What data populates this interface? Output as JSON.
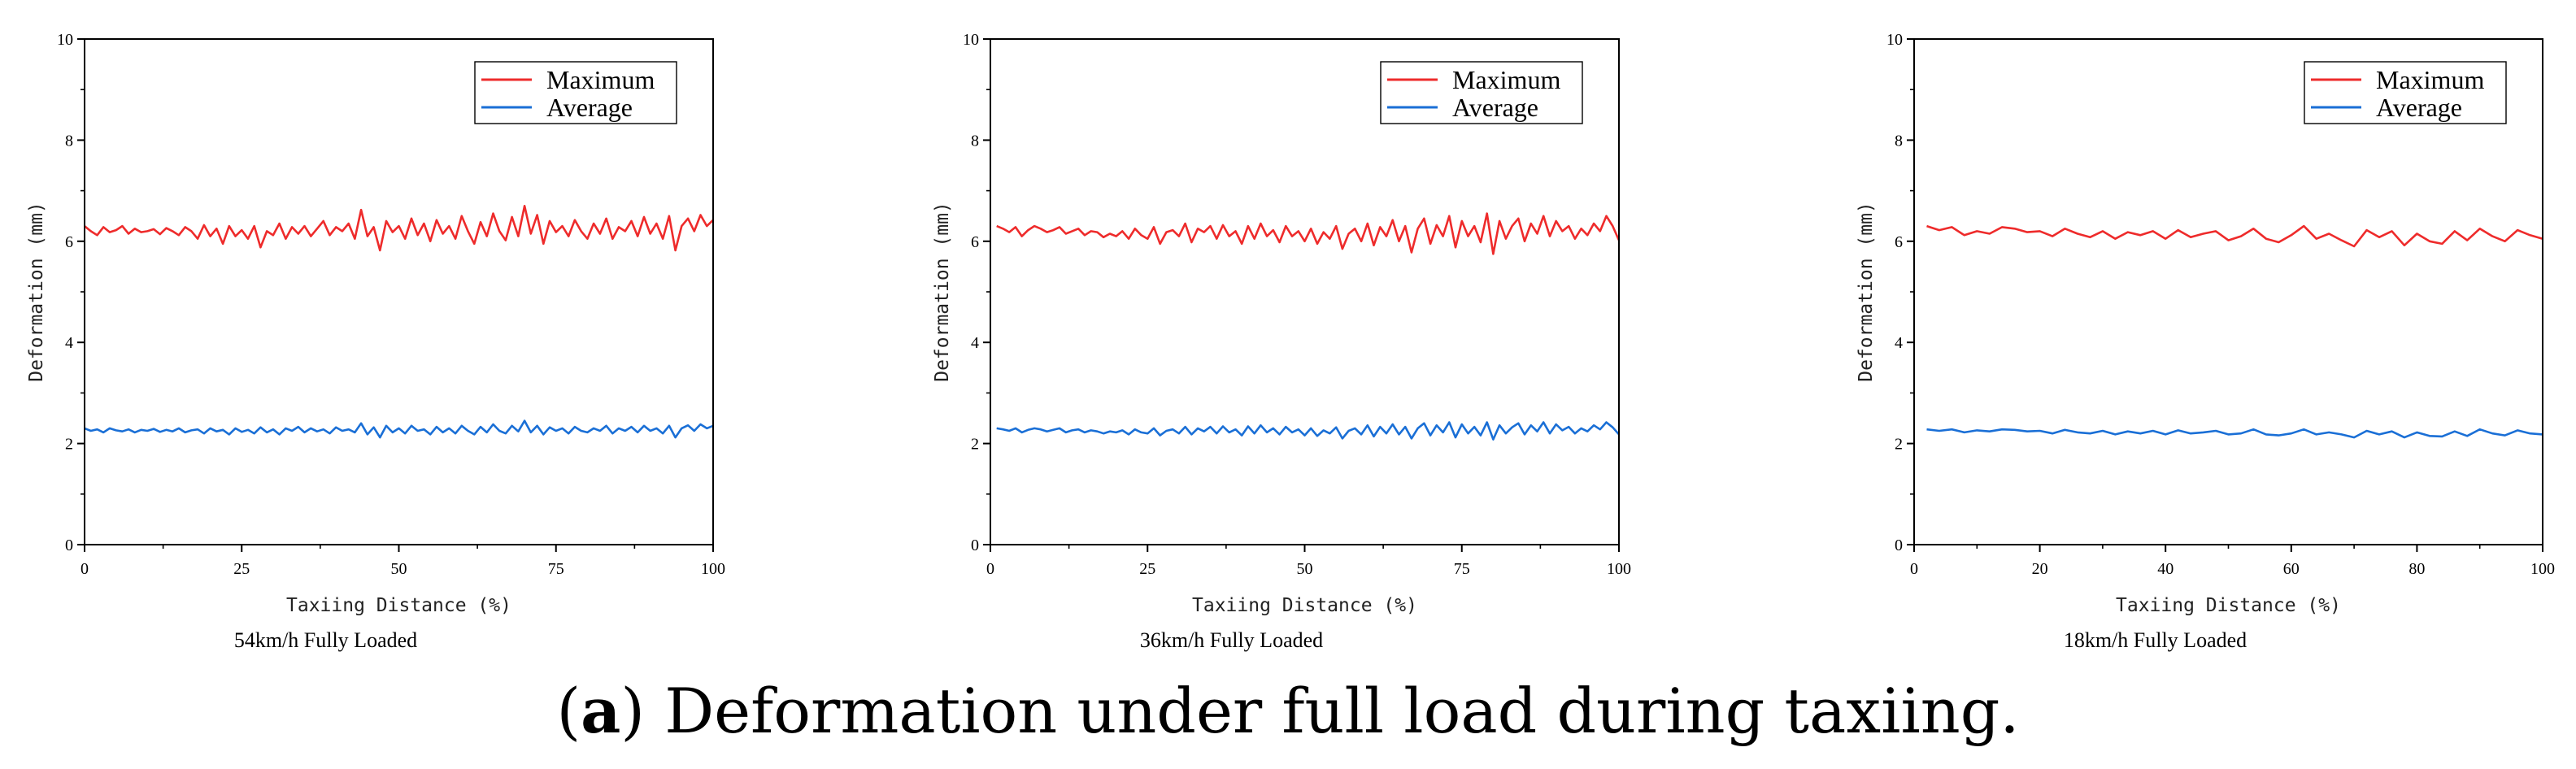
{
  "caption": {
    "label": "a",
    "open": "(",
    "close": ")",
    "text": " Deformation under full load during taxiing."
  },
  "chart_data": [
    {
      "type": "line",
      "subtitle": "54km/h Fully Loaded",
      "xlabel": "Taxiing Distance (%)",
      "ylabel": "Deformation (mm)",
      "xlim": [
        0,
        100
      ],
      "ylim": [
        0,
        10
      ],
      "xticks": [
        "0",
        "25",
        "50",
        "75",
        "100"
      ],
      "yticks": [
        "0",
        "2",
        "4",
        "6",
        "8",
        "10"
      ],
      "legend": [
        "Maximum",
        "Average"
      ],
      "series": [
        {
          "name": "Maximum",
          "color": "#ee2b2b",
          "x": [
            0,
            1,
            2,
            3,
            4,
            5,
            6,
            7,
            8,
            9,
            10,
            11,
            12,
            13,
            14,
            15,
            16,
            17,
            18,
            19,
            20,
            21,
            22,
            23,
            24,
            25,
            26,
            27,
            28,
            29,
            30,
            31,
            32,
            33,
            34,
            35,
            36,
            37,
            38,
            39,
            40,
            41,
            42,
            43,
            44,
            45,
            46,
            47,
            48,
            49,
            50,
            51,
            52,
            53,
            54,
            55,
            56,
            57,
            58,
            59,
            60,
            61,
            62,
            63,
            64,
            65,
            66,
            67,
            68,
            69,
            70,
            71,
            72,
            73,
            74,
            75,
            76,
            77,
            78,
            79,
            80,
            81,
            82,
            83,
            84,
            85,
            86,
            87,
            88,
            89,
            90,
            91,
            92,
            93,
            94,
            95,
            96,
            97,
            98,
            99,
            100
          ],
          "y": [
            6.3,
            6.2,
            6.12,
            6.28,
            6.18,
            6.22,
            6.3,
            6.15,
            6.25,
            6.18,
            6.2,
            6.24,
            6.14,
            6.26,
            6.2,
            6.12,
            6.28,
            6.2,
            6.05,
            6.32,
            6.1,
            6.25,
            5.95,
            6.3,
            6.1,
            6.22,
            6.05,
            6.3,
            5.88,
            6.2,
            6.12,
            6.35,
            6.05,
            6.28,
            6.15,
            6.3,
            6.1,
            6.25,
            6.4,
            6.12,
            6.28,
            6.2,
            6.35,
            6.05,
            6.62,
            6.1,
            6.28,
            5.82,
            6.4,
            6.18,
            6.3,
            6.05,
            6.45,
            6.12,
            6.35,
            6.0,
            6.42,
            6.15,
            6.3,
            6.05,
            6.5,
            6.2,
            5.95,
            6.38,
            6.1,
            6.55,
            6.2,
            6.02,
            6.48,
            6.1,
            6.7,
            6.15,
            6.52,
            5.95,
            6.4,
            6.18,
            6.3,
            6.1,
            6.42,
            6.2,
            6.05,
            6.35,
            6.15,
            6.45,
            6.05,
            6.28,
            6.2,
            6.4,
            6.1,
            6.48,
            6.15,
            6.35,
            6.05,
            6.5,
            5.82,
            6.3,
            6.45,
            6.2,
            6.52,
            6.3,
            6.42
          ]
        },
        {
          "name": "Average",
          "color": "#1a6fd6",
          "x": [
            0,
            1,
            2,
            3,
            4,
            5,
            6,
            7,
            8,
            9,
            10,
            11,
            12,
            13,
            14,
            15,
            16,
            17,
            18,
            19,
            20,
            21,
            22,
            23,
            24,
            25,
            26,
            27,
            28,
            29,
            30,
            31,
            32,
            33,
            34,
            35,
            36,
            37,
            38,
            39,
            40,
            41,
            42,
            43,
            44,
            45,
            46,
            47,
            48,
            49,
            50,
            51,
            52,
            53,
            54,
            55,
            56,
            57,
            58,
            59,
            60,
            61,
            62,
            63,
            64,
            65,
            66,
            67,
            68,
            69,
            70,
            71,
            72,
            73,
            74,
            75,
            76,
            77,
            78,
            79,
            80,
            81,
            82,
            83,
            84,
            85,
            86,
            87,
            88,
            89,
            90,
            91,
            92,
            93,
            94,
            95,
            96,
            97,
            98,
            99,
            100
          ],
          "y": [
            2.3,
            2.25,
            2.28,
            2.22,
            2.3,
            2.26,
            2.24,
            2.28,
            2.22,
            2.27,
            2.25,
            2.29,
            2.23,
            2.27,
            2.24,
            2.3,
            2.22,
            2.26,
            2.28,
            2.2,
            2.3,
            2.24,
            2.27,
            2.18,
            2.3,
            2.23,
            2.27,
            2.2,
            2.32,
            2.22,
            2.28,
            2.18,
            2.3,
            2.25,
            2.33,
            2.22,
            2.3,
            2.24,
            2.28,
            2.2,
            2.32,
            2.25,
            2.28,
            2.22,
            2.4,
            2.18,
            2.32,
            2.12,
            2.35,
            2.22,
            2.3,
            2.2,
            2.35,
            2.25,
            2.28,
            2.18,
            2.33,
            2.22,
            2.3,
            2.2,
            2.35,
            2.25,
            2.18,
            2.33,
            2.22,
            2.38,
            2.25,
            2.2,
            2.35,
            2.24,
            2.45,
            2.22,
            2.35,
            2.18,
            2.32,
            2.25,
            2.3,
            2.2,
            2.33,
            2.25,
            2.22,
            2.3,
            2.25,
            2.35,
            2.2,
            2.3,
            2.25,
            2.33,
            2.22,
            2.35,
            2.25,
            2.3,
            2.2,
            2.35,
            2.12,
            2.3,
            2.36,
            2.25,
            2.38,
            2.3,
            2.35
          ]
        }
      ]
    },
    {
      "type": "line",
      "subtitle": "36km/h Fully Loaded",
      "xlabel": "Taxiing Distance (%)",
      "ylabel": "Deformation (mm)",
      "xlim": [
        0,
        100
      ],
      "ylim": [
        0,
        10
      ],
      "xticks": [
        "0",
        "25",
        "50",
        "75",
        "100"
      ],
      "yticks": [
        "0",
        "2",
        "4",
        "6",
        "8",
        "10"
      ],
      "legend": [
        "Maximum",
        "Average"
      ],
      "series": [
        {
          "name": "Maximum",
          "color": "#ee2b2b",
          "x": [
            1,
            2,
            3,
            4,
            5,
            6,
            7,
            8,
            9,
            10,
            11,
            12,
            13,
            14,
            15,
            16,
            17,
            18,
            19,
            20,
            21,
            22,
            23,
            24,
            25,
            26,
            27,
            28,
            29,
            30,
            31,
            32,
            33,
            34,
            35,
            36,
            37,
            38,
            39,
            40,
            41,
            42,
            43,
            44,
            45,
            46,
            47,
            48,
            49,
            50,
            51,
            52,
            53,
            54,
            55,
            56,
            57,
            58,
            59,
            60,
            61,
            62,
            63,
            64,
            65,
            66,
            67,
            68,
            69,
            70,
            71,
            72,
            73,
            74,
            75,
            76,
            77,
            78,
            79,
            80,
            81,
            82,
            83,
            84,
            85,
            86,
            87,
            88,
            89,
            90,
            91,
            92,
            93,
            94,
            95,
            96,
            97,
            98,
            99,
            100
          ],
          "y": [
            6.3,
            6.25,
            6.18,
            6.28,
            6.1,
            6.22,
            6.3,
            6.25,
            6.18,
            6.22,
            6.28,
            6.15,
            6.2,
            6.25,
            6.12,
            6.2,
            6.18,
            6.08,
            6.15,
            6.1,
            6.2,
            6.05,
            6.25,
            6.12,
            6.05,
            6.28,
            5.95,
            6.18,
            6.22,
            6.1,
            6.35,
            5.98,
            6.25,
            6.18,
            6.3,
            6.05,
            6.32,
            6.1,
            6.2,
            5.95,
            6.3,
            6.05,
            6.35,
            6.1,
            6.22,
            5.98,
            6.3,
            6.1,
            6.2,
            6.0,
            6.25,
            5.95,
            6.18,
            6.05,
            6.3,
            5.85,
            6.15,
            6.25,
            6.0,
            6.35,
            5.92,
            6.28,
            6.1,
            6.42,
            6.0,
            6.3,
            5.78,
            6.25,
            6.45,
            5.95,
            6.32,
            6.1,
            6.5,
            5.88,
            6.4,
            6.1,
            6.3,
            5.98,
            6.55,
            5.75,
            6.4,
            6.05,
            6.3,
            6.45,
            6.0,
            6.35,
            6.15,
            6.5,
            6.1,
            6.4,
            6.2,
            6.3,
            6.05,
            6.25,
            6.12,
            6.35,
            6.2,
            6.5,
            6.3,
            6.02
          ]
        },
        {
          "name": "Average",
          "color": "#1a6fd6",
          "x": [
            1,
            2,
            3,
            4,
            5,
            6,
            7,
            8,
            9,
            10,
            11,
            12,
            13,
            14,
            15,
            16,
            17,
            18,
            19,
            20,
            21,
            22,
            23,
            24,
            25,
            26,
            27,
            28,
            29,
            30,
            31,
            32,
            33,
            34,
            35,
            36,
            37,
            38,
            39,
            40,
            41,
            42,
            43,
            44,
            45,
            46,
            47,
            48,
            49,
            50,
            51,
            52,
            53,
            54,
            55,
            56,
            57,
            58,
            59,
            60,
            61,
            62,
            63,
            64,
            65,
            66,
            67,
            68,
            69,
            70,
            71,
            72,
            73,
            74,
            75,
            76,
            77,
            78,
            79,
            80,
            81,
            82,
            83,
            84,
            85,
            86,
            87,
            88,
            89,
            90,
            91,
            92,
            93,
            94,
            95,
            96,
            97,
            98,
            99,
            100
          ],
          "y": [
            2.3,
            2.28,
            2.25,
            2.3,
            2.22,
            2.27,
            2.3,
            2.28,
            2.24,
            2.27,
            2.3,
            2.22,
            2.26,
            2.28,
            2.22,
            2.26,
            2.24,
            2.2,
            2.24,
            2.22,
            2.26,
            2.18,
            2.28,
            2.22,
            2.2,
            2.3,
            2.16,
            2.25,
            2.28,
            2.2,
            2.33,
            2.18,
            2.3,
            2.24,
            2.33,
            2.2,
            2.34,
            2.22,
            2.28,
            2.16,
            2.34,
            2.2,
            2.36,
            2.22,
            2.3,
            2.18,
            2.33,
            2.22,
            2.28,
            2.16,
            2.3,
            2.15,
            2.26,
            2.2,
            2.32,
            2.1,
            2.25,
            2.3,
            2.18,
            2.36,
            2.14,
            2.33,
            2.2,
            2.38,
            2.18,
            2.33,
            2.1,
            2.3,
            2.4,
            2.16,
            2.36,
            2.22,
            2.42,
            2.12,
            2.38,
            2.2,
            2.33,
            2.16,
            2.42,
            2.08,
            2.36,
            2.2,
            2.32,
            2.4,
            2.18,
            2.36,
            2.24,
            2.42,
            2.2,
            2.38,
            2.26,
            2.33,
            2.2,
            2.3,
            2.24,
            2.36,
            2.28,
            2.42,
            2.32,
            2.18
          ]
        }
      ]
    },
    {
      "type": "line",
      "subtitle": "18km/h Fully Loaded",
      "xlabel": "Taxiing Distance (%)",
      "ylabel": "Deformation (mm)",
      "xlim": [
        0,
        100
      ],
      "ylim": [
        0,
        10
      ],
      "xticks": [
        "0",
        "20",
        "40",
        "60",
        "80",
        "100"
      ],
      "yticks": [
        "0",
        "2",
        "4",
        "6",
        "8",
        "10"
      ],
      "legend": [
        "Maximum",
        "Average"
      ],
      "series": [
        {
          "name": "Maximum",
          "color": "#ee2b2b",
          "x": [
            2,
            4,
            6,
            8,
            10,
            12,
            14,
            16,
            18,
            20,
            22,
            24,
            26,
            28,
            30,
            32,
            34,
            36,
            38,
            40,
            42,
            44,
            46,
            48,
            50,
            52,
            54,
            56,
            58,
            60,
            62,
            64,
            66,
            68,
            70,
            72,
            74,
            76,
            78,
            80,
            82,
            84,
            86,
            88,
            90,
            92,
            94,
            96,
            98,
            100
          ],
          "y": [
            6.3,
            6.22,
            6.28,
            6.12,
            6.2,
            6.15,
            6.28,
            6.25,
            6.18,
            6.2,
            6.1,
            6.25,
            6.15,
            6.08,
            6.2,
            6.05,
            6.18,
            6.12,
            6.2,
            6.05,
            6.22,
            6.08,
            6.15,
            6.2,
            6.02,
            6.1,
            6.25,
            6.05,
            5.98,
            6.12,
            6.3,
            6.05,
            6.15,
            6.02,
            5.9,
            6.22,
            6.08,
            6.2,
            5.92,
            6.15,
            6.0,
            5.95,
            6.2,
            6.02,
            6.25,
            6.1,
            6.0,
            6.22,
            6.12,
            6.05
          ]
        },
        {
          "name": "Average",
          "color": "#1a6fd6",
          "x": [
            2,
            4,
            6,
            8,
            10,
            12,
            14,
            16,
            18,
            20,
            22,
            24,
            26,
            28,
            30,
            32,
            34,
            36,
            38,
            40,
            42,
            44,
            46,
            48,
            50,
            52,
            54,
            56,
            58,
            60,
            62,
            64,
            66,
            68,
            70,
            72,
            74,
            76,
            78,
            80,
            82,
            84,
            86,
            88,
            90,
            92,
            94,
            96,
            98,
            100
          ],
          "y": [
            2.28,
            2.25,
            2.28,
            2.22,
            2.26,
            2.24,
            2.28,
            2.27,
            2.24,
            2.25,
            2.2,
            2.27,
            2.22,
            2.2,
            2.25,
            2.18,
            2.24,
            2.2,
            2.25,
            2.18,
            2.26,
            2.2,
            2.22,
            2.25,
            2.18,
            2.2,
            2.28,
            2.18,
            2.16,
            2.2,
            2.28,
            2.18,
            2.22,
            2.18,
            2.12,
            2.25,
            2.18,
            2.24,
            2.12,
            2.22,
            2.15,
            2.14,
            2.24,
            2.15,
            2.28,
            2.2,
            2.16,
            2.26,
            2.2,
            2.18
          ]
        }
      ]
    }
  ]
}
